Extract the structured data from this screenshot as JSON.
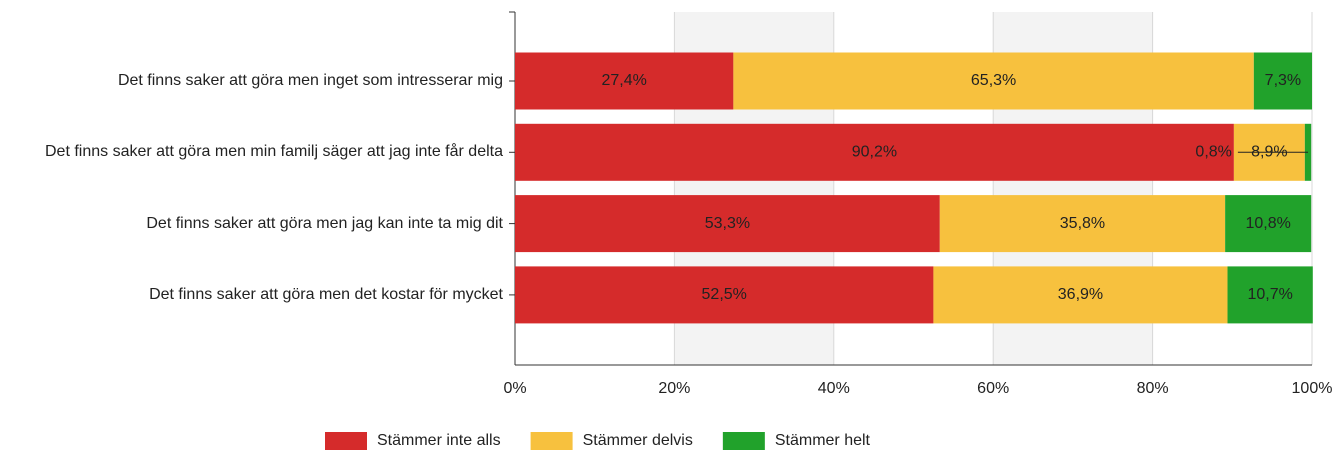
{
  "chart_data": {
    "type": "stacked-bar-horizontal",
    "categories": [
      "Det finns saker att göra men inget som intresserar mig",
      "Det finns saker att göra men min familj säger att jag inte får delta",
      "Det finns saker att göra men jag kan inte ta mig dit",
      "Det finns saker att göra men det kostar för mycket"
    ],
    "series": [
      {
        "name": "Stämmer inte alls",
        "color": "#d52b2b",
        "values": [
          27.4,
          90.2,
          53.3,
          52.5
        ],
        "value_labels": [
          "27,4%",
          "90,2%",
          "53,3%",
          "52,5%"
        ]
      },
      {
        "name": "Stämmer delvis",
        "color": "#f7c13e",
        "values": [
          65.3,
          8.9,
          35.8,
          36.9
        ],
        "value_labels": [
          "65,3%",
          "8,9%",
          "35,8%",
          "36,9%"
        ]
      },
      {
        "name": "Stämmer helt",
        "color": "#21a22b",
        "values": [
          7.3,
          0.8,
          10.8,
          10.7
        ],
        "value_labels": [
          "7,3%",
          "0,8%",
          "10,8%",
          "10,7%"
        ]
      }
    ],
    "xlim": [
      0,
      100
    ],
    "xticks": [
      {
        "value": 0,
        "label": "0%"
      },
      {
        "value": 20,
        "label": "20%"
      },
      {
        "value": 40,
        "label": "40%"
      },
      {
        "value": 60,
        "label": "60%"
      },
      {
        "value": 80,
        "label": "80%"
      },
      {
        "value": 100,
        "label": "100%"
      }
    ],
    "grid": true,
    "legend": "bottom"
  }
}
